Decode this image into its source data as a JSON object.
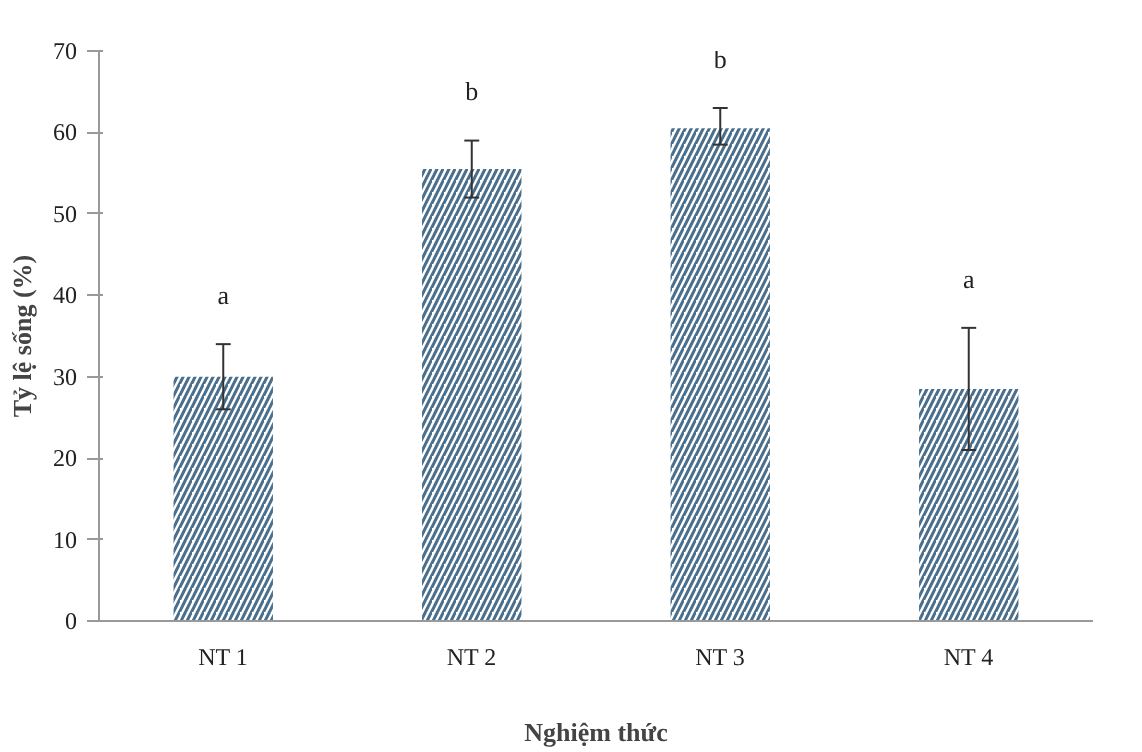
{
  "chart_data": {
    "type": "bar",
    "xlabel": "Nghiệm thức",
    "ylabel": "Tỷ lệ sống (%)",
    "categories": [
      "NT 1",
      "NT 2",
      "NT 3",
      "NT 4"
    ],
    "values": [
      30,
      55.5,
      60.5,
      28.5
    ],
    "errors": [
      [
        26,
        34
      ],
      [
        52,
        59
      ],
      [
        58.5,
        63
      ],
      [
        21,
        36
      ]
    ],
    "color": "#4a6f8c",
    "ylim": [
      0,
      70
    ],
    "yticks": [
      0,
      10,
      20,
      30,
      40,
      50,
      60,
      70
    ],
    "grid": false,
    "annotations": [
      "a",
      "b",
      "b",
      "a"
    ]
  }
}
